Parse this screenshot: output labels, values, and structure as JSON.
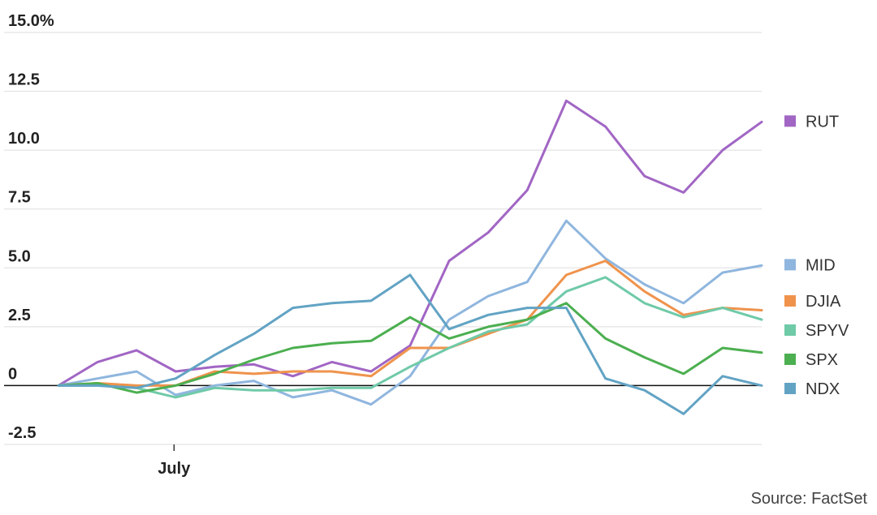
{
  "chart_data": {
    "type": "line",
    "x": [
      0,
      1,
      2,
      3,
      4,
      5,
      6,
      7,
      8,
      9,
      10,
      11,
      12,
      13,
      14,
      15,
      16,
      17,
      18
    ],
    "x_ticks": [
      {
        "x": 3,
        "label": "July"
      }
    ],
    "ylim": [
      -2.5,
      15.0
    ],
    "y_ticks": [
      {
        "value": 15.0,
        "label": "15.0%"
      },
      {
        "value": 12.5,
        "label": "12.5"
      },
      {
        "value": 10.0,
        "label": "10.0"
      },
      {
        "value": 7.5,
        "label": "7.5"
      },
      {
        "value": 5.0,
        "label": "5.0"
      },
      {
        "value": 2.5,
        "label": "2.5"
      },
      {
        "value": 0,
        "label": "0"
      },
      {
        "value": -2.5,
        "label": "-2.5"
      }
    ],
    "grid": true,
    "legend_position": "right",
    "series": [
      {
        "name": "RUT",
        "color": "#a166c4",
        "values": [
          0,
          1.0,
          1.5,
          0.6,
          0.8,
          0.9,
          0.4,
          1.0,
          0.6,
          1.7,
          5.3,
          6.5,
          8.3,
          12.1,
          11.0,
          8.9,
          8.2,
          10.0,
          11.2
        ]
      },
      {
        "name": "MID",
        "color": "#8fb6de",
        "values": [
          0,
          0.3,
          0.6,
          -0.4,
          0.0,
          0.2,
          -0.5,
          -0.2,
          -0.8,
          0.4,
          2.8,
          3.8,
          4.4,
          7.0,
          5.4,
          4.3,
          3.5,
          4.8,
          5.1
        ]
      },
      {
        "name": "DJIA",
        "color": "#ef934c",
        "values": [
          0,
          0.1,
          0.0,
          0.0,
          0.6,
          0.5,
          0.6,
          0.6,
          0.4,
          1.6,
          1.6,
          2.2,
          2.8,
          4.7,
          5.3,
          4.0,
          3.0,
          3.3,
          3.2
        ]
      },
      {
        "name": "SPYV",
        "color": "#6fcaa8",
        "values": [
          0,
          0.0,
          -0.1,
          -0.5,
          -0.1,
          -0.2,
          -0.2,
          -0.1,
          -0.1,
          0.8,
          1.6,
          2.3,
          2.6,
          4.0,
          4.6,
          3.5,
          2.9,
          3.3,
          2.8
        ]
      },
      {
        "name": "SPX",
        "color": "#4caf50",
        "values": [
          0,
          0.1,
          -0.3,
          0.0,
          0.5,
          1.1,
          1.6,
          1.8,
          1.9,
          2.9,
          2.0,
          2.5,
          2.8,
          3.5,
          2.0,
          1.2,
          0.5,
          1.6,
          1.4
        ]
      },
      {
        "name": "NDX",
        "color": "#62a3c4",
        "values": [
          0,
          0.0,
          -0.1,
          0.3,
          1.3,
          2.2,
          3.3,
          3.5,
          3.6,
          4.7,
          2.4,
          3.0,
          3.3,
          3.3,
          0.3,
          -0.2,
          -1.2,
          0.4,
          0.0
        ]
      }
    ],
    "source": "Source: FactSet"
  }
}
